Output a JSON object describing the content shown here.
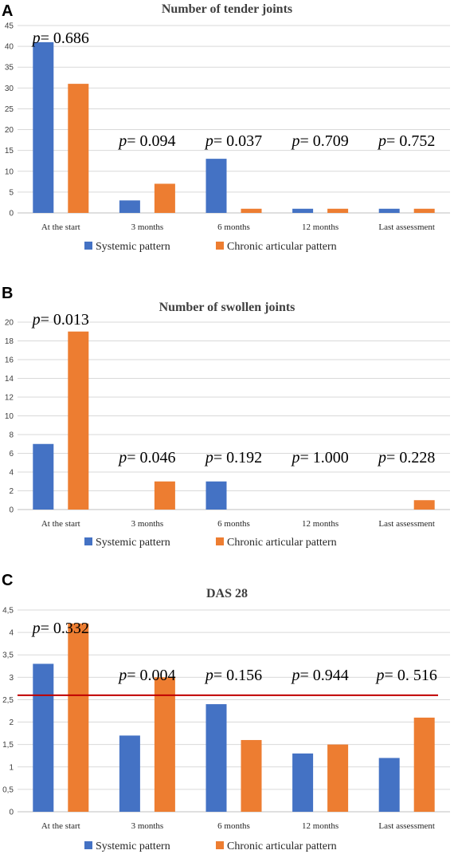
{
  "colors": {
    "systemic": "#4472C4",
    "chronic": "#ED7D31",
    "reference_line": "#C00000",
    "gridline": "#D9D9D9"
  },
  "chart_data": [
    {
      "panel": "A",
      "type": "bar",
      "title": "Number of tender joints",
      "categories": [
        "At the start",
        "3 months",
        "6 months",
        "12 months",
        "Last assessment"
      ],
      "series": [
        {
          "name": "Systemic pattern",
          "values": [
            41,
            3,
            13,
            1,
            1
          ]
        },
        {
          "name": "Chronic articular pattern",
          "values": [
            31,
            7,
            1,
            1,
            1
          ]
        }
      ],
      "ylim": [
        0,
        45
      ],
      "yticks": [
        "0",
        "5",
        "10",
        "15",
        "20",
        "25",
        "30",
        "35",
        "40",
        "45"
      ],
      "annotations": [
        "= 0.686",
        "= 0.094",
        "= 0.037",
        "= 0.709",
        "= 0.752"
      ],
      "annotation_prefix": "p",
      "grid": true,
      "legend": "bottom"
    },
    {
      "panel": "B",
      "type": "bar",
      "title": "Number of swollen joints",
      "categories": [
        "At the start",
        "3 months",
        "6 months",
        "12 months",
        "Last assessment"
      ],
      "series": [
        {
          "name": "Systemic pattern",
          "values": [
            7,
            0,
            3,
            0,
            0
          ]
        },
        {
          "name": "Chronic articular pattern",
          "values": [
            19,
            3,
            0,
            0,
            1
          ]
        }
      ],
      "ylim": [
        0,
        20
      ],
      "yticks": [
        "0",
        "2",
        "4",
        "6",
        "8",
        "10",
        "12",
        "14",
        "16",
        "18",
        "20"
      ],
      "annotations": [
        "= 0.013",
        "= 0.046",
        "= 0.192",
        "= 1.000",
        "= 0.228"
      ],
      "annotation_prefix": "p",
      "grid": true,
      "legend": "bottom"
    },
    {
      "panel": "C",
      "type": "bar",
      "title": "DAS 28",
      "categories": [
        "At the start",
        "3 months",
        "6 months",
        "12 months",
        "Last assessment"
      ],
      "series": [
        {
          "name": "Systemic pattern",
          "values": [
            3.3,
            1.7,
            2.4,
            1.3,
            1.2
          ]
        },
        {
          "name": "Chronic articular pattern",
          "values": [
            4.2,
            3.0,
            1.6,
            1.5,
            2.1
          ]
        }
      ],
      "ylim": [
        0,
        4.5
      ],
      "yticks": [
        "0",
        "0,5",
        "1",
        "1,5",
        "2",
        "2,5",
        "3",
        "3,5",
        "4",
        "4,5"
      ],
      "reference_line": 2.6,
      "annotations": [
        "= 0.332",
        "= 0.004",
        "= 0.156",
        "= 0.944",
        "= 0. 516"
      ],
      "annotation_prefix": "p",
      "grid": true,
      "legend": "bottom"
    }
  ]
}
